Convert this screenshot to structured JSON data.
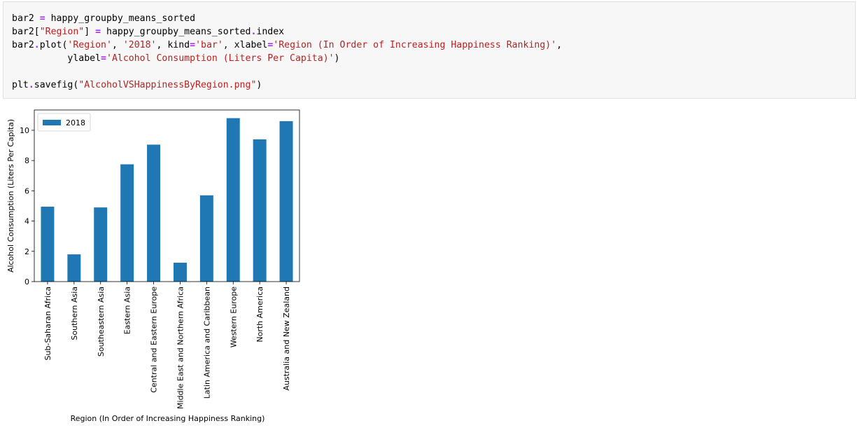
{
  "cell": {
    "lines": [
      [
        {
          "t": "bar2 "
        },
        {
          "t": "=",
          "c": "op"
        },
        {
          "t": " happy_groupby_means_sorted"
        }
      ],
      [
        {
          "t": "bar2["
        },
        {
          "t": "\"Region\"",
          "c": "str"
        },
        {
          "t": "] "
        },
        {
          "t": "=",
          "c": "op"
        },
        {
          "t": " happy_groupby_means_sorted"
        },
        {
          "t": ".",
          "c": "op"
        },
        {
          "t": "index"
        }
      ],
      [
        {
          "t": "bar2"
        },
        {
          "t": ".",
          "c": "op"
        },
        {
          "t": "plot("
        },
        {
          "t": "'Region'",
          "c": "str"
        },
        {
          "t": ", "
        },
        {
          "t": "'2018'",
          "c": "str"
        },
        {
          "t": ", kind"
        },
        {
          "t": "=",
          "c": "op"
        },
        {
          "t": "'bar'",
          "c": "str"
        },
        {
          "t": ", xlabel"
        },
        {
          "t": "=",
          "c": "op"
        },
        {
          "t": "'Region (In Order of Increasing Happiness Ranking)'",
          "c": "str"
        },
        {
          "t": ","
        }
      ],
      [
        {
          "t": "          ylabel"
        },
        {
          "t": "=",
          "c": "op"
        },
        {
          "t": "'Alcohol Consumption (Liters Per Capita)'",
          "c": "str"
        },
        {
          "t": ")"
        }
      ],
      [],
      [
        {
          "t": "plt"
        },
        {
          "t": ".",
          "c": "op"
        },
        {
          "t": "savefig("
        },
        {
          "t": "\"AlcoholVSHappinessByRegion.png\"",
          "c": "str"
        },
        {
          "t": ")"
        }
      ]
    ]
  },
  "colors": {
    "bar": "#1f77b4",
    "op": "#aa22ff",
    "str": "#ba2121"
  },
  "chart_data": {
    "type": "bar",
    "categories": [
      "Sub-Saharan Africa",
      "Southern Asia",
      "Southeastern Asia",
      "Eastern Asia",
      "Central and Eastern Europe",
      "Middle East and Northern Africa",
      "Latin America and Caribbean",
      "Western Europe",
      "North America",
      "Australia and New Zealand"
    ],
    "series": [
      {
        "name": "2018",
        "values": [
          4.95,
          1.8,
          4.9,
          7.75,
          9.05,
          1.25,
          5.7,
          10.8,
          9.4,
          10.6
        ]
      }
    ],
    "xlabel": "Region (In Order of Increasing Happiness Ranking)",
    "ylabel": "Alcohol Consumption (Liters Per Capita)",
    "ylim": [
      0,
      11.34
    ],
    "yticks": [
      0,
      2,
      4,
      6,
      8,
      10
    ],
    "legend": "top-left",
    "grid": false
  }
}
